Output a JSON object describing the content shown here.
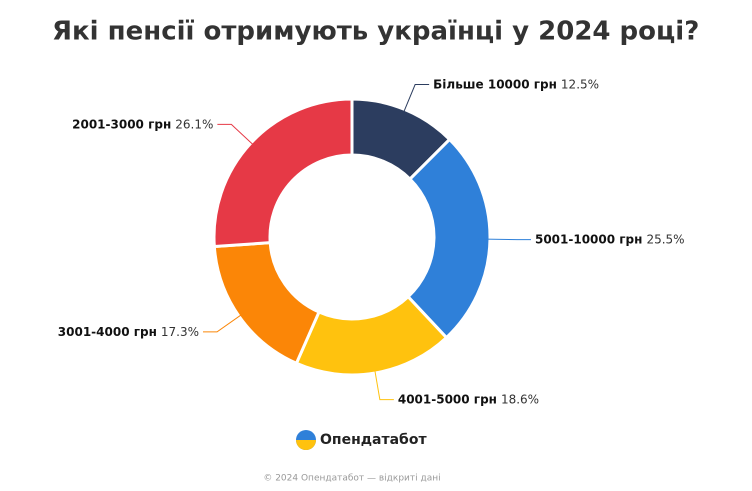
{
  "chart_data": {
    "type": "donut",
    "title": "Які пенсії отримують українці у 2024 році?",
    "categories": [
      "Більше 10000 грн",
      "5001-10000 грн",
      "4001-5000 грн",
      "3001-4000 грн",
      "2001-3000 грн"
    ],
    "values": [
      12.5,
      25.5,
      18.6,
      17.3,
      26.1
    ],
    "value_labels": [
      "12.5%",
      "25.5%",
      "18.6%",
      "17.3%",
      "26.1%"
    ],
    "colors": [
      "#2c3d5f",
      "#2f80d9",
      "#ffc20e",
      "#fb8607",
      "#e63946"
    ]
  },
  "brand": "Опендатабот",
  "footer": "© 2024 Опендатабот — відкриті дані"
}
